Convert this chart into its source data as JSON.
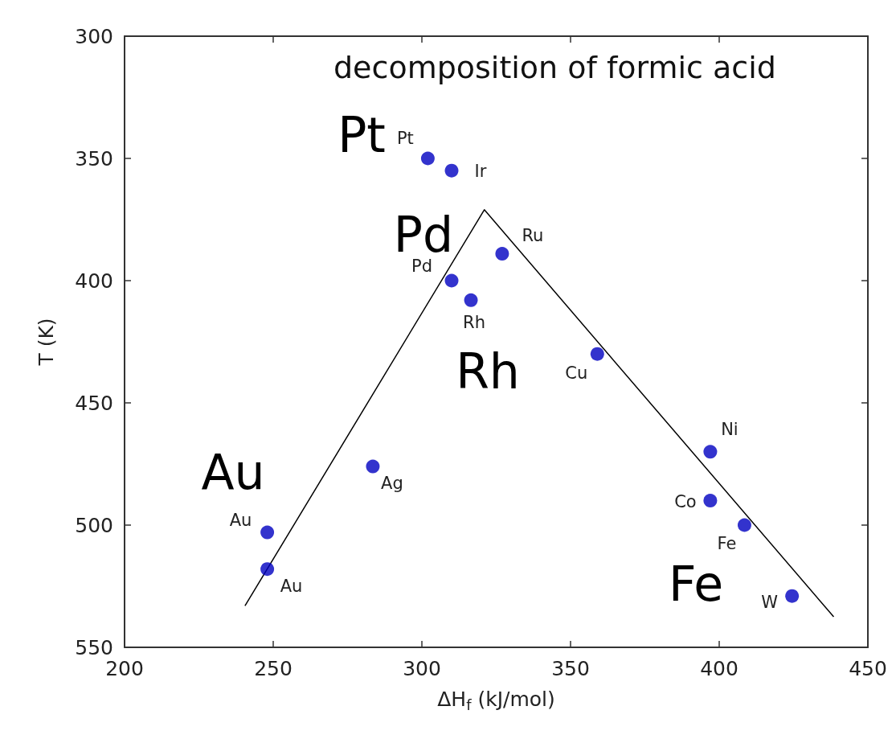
{
  "chart_data": {
    "type": "scatter",
    "title": "decomposition of formic acid",
    "xlabel": "ΔH$_{f}$ (kJ/mol)",
    "ylabel": "T (K)",
    "xlim": [
      200,
      450
    ],
    "xticks": [
      200,
      250,
      300,
      350,
      400,
      450
    ],
    "ylim": [
      550,
      300
    ],
    "yticks": [
      300,
      350,
      400,
      450,
      500,
      550
    ],
    "grid": false,
    "marker": "circle",
    "series": [
      {
        "color": "#0000c0",
        "x": [
          302,
          310,
          327,
          310,
          316.5,
          359,
          397,
          397,
          408.5,
          424.5,
          283.5,
          248,
          248
        ],
        "values": [
          350,
          355,
          389,
          400,
          408,
          430,
          470,
          490,
          500,
          529,
          476,
          503,
          518
        ]
      },
      {
        "type": "line",
        "color": "#000000",
        "marker": "none",
        "line_style": "solid",
        "x": [
          240.5,
          321,
          438.5
        ],
        "values": [
          533,
          371,
          537.5
        ]
      }
    ],
    "annotations": [
      {
        "text": "Pt",
        "x": 302,
        "y": 350
      },
      {
        "text": "Ir",
        "x": 310,
        "y": 355
      },
      {
        "text": "Ru",
        "x": 327,
        "y": 389
      },
      {
        "text": "Pd",
        "x": 310,
        "y": 400
      },
      {
        "text": "Rh",
        "x": 316.5,
        "y": 408
      },
      {
        "text": "Cu",
        "x": 359,
        "y": 430
      },
      {
        "text": "Ni",
        "x": 397,
        "y": 470
      },
      {
        "text": "Co",
        "x": 397,
        "y": 490
      },
      {
        "text": "Fe",
        "x": 408.5,
        "y": 500
      },
      {
        "text": "W",
        "x": 424.5,
        "y": 529
      },
      {
        "text": "Ag",
        "x": 283.5,
        "y": 476
      },
      {
        "text": "Au",
        "x": 248,
        "y": 503
      },
      {
        "text": "Au",
        "x": 248,
        "y": 518
      },
      "Pt",
      "Pd",
      "Rh",
      "Au",
      "Fe"
    ]
  }
}
